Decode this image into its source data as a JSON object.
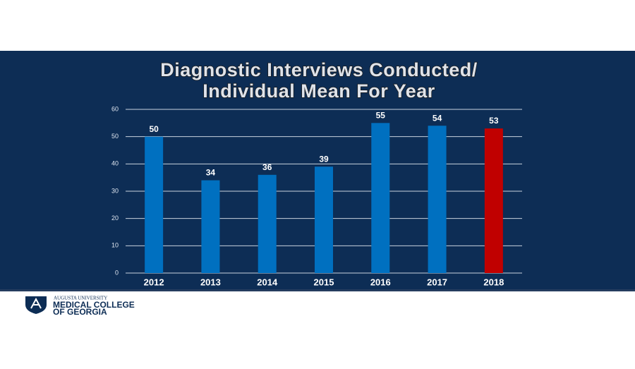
{
  "chart_data": {
    "type": "bar",
    "title": [
      "Diagnostic Interviews Conducted/",
      "Individual Mean For Year"
    ],
    "categories": [
      "2012",
      "2013",
      "2014",
      "2015",
      "2016",
      "2017",
      "2018"
    ],
    "values": [
      50,
      34,
      36,
      39,
      55,
      54,
      53
    ],
    "colors": [
      "#0070c0",
      "#0070c0",
      "#0070c0",
      "#0070c0",
      "#0070c0",
      "#0070c0",
      "#c00000"
    ],
    "ylim": [
      0,
      60
    ],
    "yticks": [
      0,
      10,
      20,
      30,
      40,
      50,
      60
    ],
    "grid": true
  },
  "footer": {
    "university": "AUGUSTA UNIVERSITY",
    "college_line1": "MEDICAL COLLEGE",
    "college_line2": "OF GEORGIA"
  }
}
